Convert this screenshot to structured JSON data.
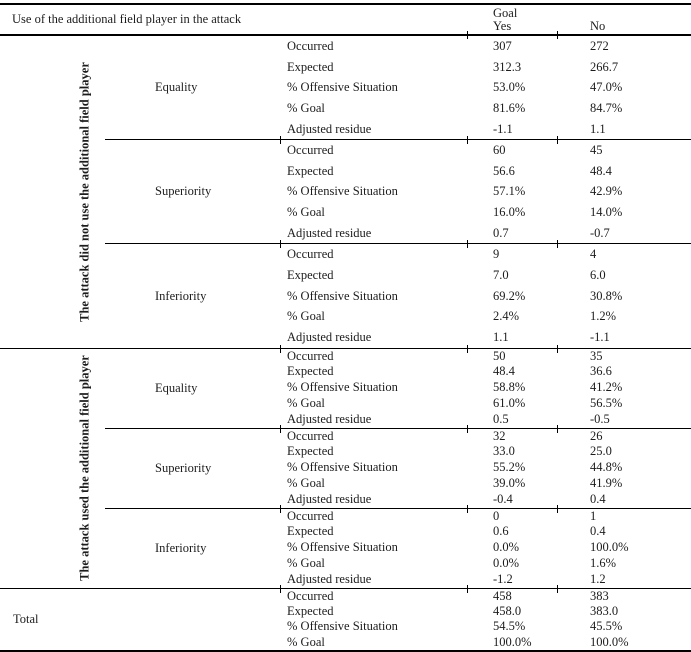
{
  "header": {
    "title": "Use of the additional field player in the attack",
    "goal_label": "Goal",
    "col_yes": "Yes",
    "col_no": "No"
  },
  "metrics": [
    "Occurred",
    "Expected",
    "% Offensive Situation",
    "% Goal",
    "Adjusted residue"
  ],
  "groups": [
    {
      "label": "The attack did not use the additional field player",
      "blocks": [
        {
          "situation": "Equality",
          "values": [
            [
              "307",
              "272"
            ],
            [
              "312.3",
              "266.7"
            ],
            [
              "53.0%",
              "47.0%"
            ],
            [
              "81.6%",
              "84.7%"
            ],
            [
              "-1.1",
              "1.1"
            ]
          ]
        },
        {
          "situation": "Superiority",
          "values": [
            [
              "60",
              "45"
            ],
            [
              "56.6",
              "48.4"
            ],
            [
              "57.1%",
              "42.9%"
            ],
            [
              "16.0%",
              "14.0%"
            ],
            [
              "0.7",
              "-0.7"
            ]
          ]
        },
        {
          "situation": "Inferiority",
          "values": [
            [
              "9",
              "4"
            ],
            [
              "7.0",
              "6.0"
            ],
            [
              "69.2%",
              "30.8%"
            ],
            [
              "2.4%",
              "1.2%"
            ],
            [
              "1.1",
              "-1.1"
            ]
          ]
        }
      ]
    },
    {
      "label": "The attack used the additional field player",
      "blocks": [
        {
          "situation": "Equality",
          "values": [
            [
              "50",
              "35"
            ],
            [
              "48.4",
              "36.6"
            ],
            [
              "58.8%",
              "41.2%"
            ],
            [
              "61.0%",
              "56.5%"
            ],
            [
              "0.5",
              "-0.5"
            ]
          ]
        },
        {
          "situation": "Superiority",
          "values": [
            [
              "32",
              "26"
            ],
            [
              "33.0",
              "25.0"
            ],
            [
              "55.2%",
              "44.8%"
            ],
            [
              "39.0%",
              "41.9%"
            ],
            [
              "-0.4",
              "0.4"
            ]
          ]
        },
        {
          "situation": "Inferiority",
          "values": [
            [
              "0",
              "1"
            ],
            [
              "0.6",
              "0.4"
            ],
            [
              "0.0%",
              "100.0%"
            ],
            [
              "0.0%",
              "1.6%"
            ],
            [
              "-1.2",
              "1.2"
            ]
          ]
        }
      ]
    }
  ],
  "total": {
    "label": "Total",
    "metrics": [
      "Occurred",
      "Expected",
      "% Offensive Situation",
      "% Goal"
    ],
    "values": [
      [
        "458",
        "383"
      ],
      [
        "458.0",
        "383.0"
      ],
      [
        "54.5%",
        "45.5%"
      ],
      [
        "100.0%",
        "100.0%"
      ]
    ]
  },
  "colors": {
    "text": "#1c1c1c",
    "rules": "#000000",
    "background": "#ffffff"
  }
}
